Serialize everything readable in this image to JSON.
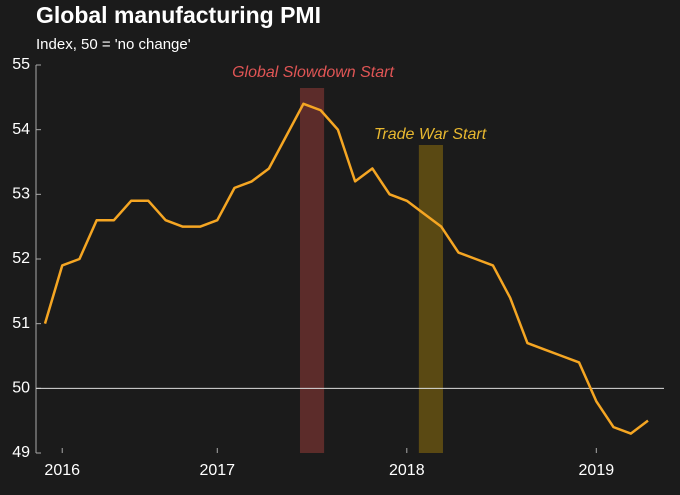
{
  "chart_data": {
    "type": "line",
    "title": "Global manufacturing PMI",
    "subtitle": "Index, 50 = 'no change'",
    "categories": [
      null,
      "2016",
      null,
      null,
      null,
      null,
      null,
      null,
      null,
      null,
      "2017",
      null,
      null,
      null,
      null,
      null,
      null,
      null,
      null,
      null,
      null,
      "2018",
      null,
      null,
      null,
      null,
      null,
      null,
      null,
      null,
      null,
      null,
      "2019",
      null,
      null,
      null
    ],
    "series": [
      {
        "name": "Global manufacturing PMI",
        "color": "#f5a623",
        "values": [
          51.0,
          51.9,
          52.0,
          52.6,
          52.6,
          52.9,
          52.9,
          52.6,
          52.5,
          52.5,
          52.6,
          53.1,
          53.2,
          53.4,
          53.9,
          54.4,
          54.3,
          54.0,
          53.2,
          53.4,
          53.0,
          52.9,
          52.7,
          52.5,
          52.1,
          52.0,
          51.9,
          51.4,
          50.7,
          50.6,
          50.5,
          50.4,
          49.8,
          49.4,
          49.3,
          49.5
        ]
      }
    ],
    "ylim": [
      49,
      55
    ],
    "yticks": [
      49,
      50,
      51,
      52,
      53,
      54,
      55
    ],
    "reference_line": 50,
    "annotations": [
      {
        "text": "Global Slowdown Start",
        "color": "#e05555"
      },
      {
        "text": "Trade War Start",
        "color": "#e8b830"
      }
    ]
  }
}
